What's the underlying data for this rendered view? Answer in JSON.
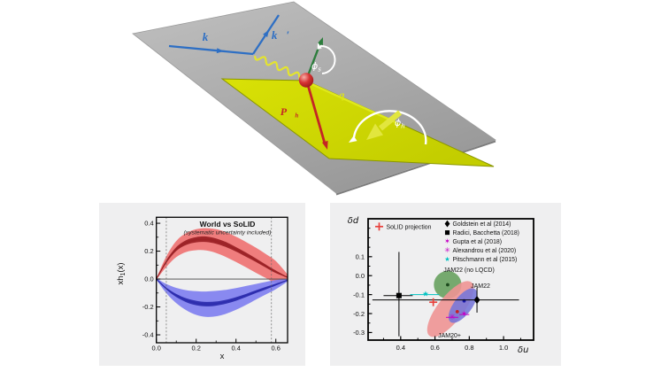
{
  "figure": {
    "bg": "#ffffff",
    "panel_bg": "#efeff0"
  },
  "diagram": {
    "labels": {
      "k": "k⃗",
      "kprime": "k⃗′",
      "q": "q⃗",
      "ph_main": "P⃗",
      "ph_sub": "h",
      "phi_s_main": "ϕ",
      "phi_s_sub": "s",
      "phi_h_main": "ϕ",
      "phi_h_sub": "h"
    },
    "colors": {
      "plane_gray_light": "#bdbdbd",
      "plane_gray_dark": "#9a9a9a",
      "plane_yellow_light": "#d8e006",
      "plane_yellow_dark": "#c2cc00",
      "plane_yellow_edge": "#8a9600",
      "lepton_blue": "#2e6fc4",
      "photon_yellow": "#e4e42e",
      "spin_green": "#2c7d3c",
      "hadron_red": "#c42525",
      "arc_white": "#ffffff",
      "sphere_red": "#cc2626"
    }
  },
  "chart_data": [
    {
      "type": "area",
      "title": "World vs SoLID",
      "subtitle": "(systematic uncertainty included)",
      "xlabel": "x",
      "ylabel_main": "xh",
      "ylabel_sub": "1",
      "ylabel_suffix": "(x)",
      "xlim": [
        0,
        0.659
      ],
      "ylim": [
        -0.457,
        0.443
      ],
      "xticks": {
        "values": [
          0.0,
          0.2,
          0.4,
          0.6
        ],
        "labels": [
          "0.0",
          "0.2",
          "0.4",
          "0.6"
        ],
        "minor": [
          0.1,
          0.3,
          0.5
        ]
      },
      "yticks": {
        "values": [
          0.4,
          0.2,
          0.0,
          -0.2,
          -0.4
        ],
        "labels": [
          "0.4",
          "0.2",
          "0.0",
          "-0.2",
          "-0.4"
        ],
        "minor": [
          0.3,
          0.1,
          -0.1,
          -0.3
        ]
      },
      "dashed_vlines": [
        0.05,
        0.578
      ],
      "zero_line": 0.0,
      "series": [
        {
          "name": "u-quark transversity band",
          "band_color": "#ee7070",
          "line_color": "#9b2226",
          "x": [
            0,
            0.05,
            0.1,
            0.15,
            0.2,
            0.25,
            0.3,
            0.35,
            0.4,
            0.45,
            0.5,
            0.55,
            0.6,
            0.659
          ],
          "center": [
            0,
            0.125,
            0.215,
            0.262,
            0.282,
            0.285,
            0.272,
            0.247,
            0.213,
            0.175,
            0.135,
            0.093,
            0.052,
            0.012
          ],
          "half_outer": [
            0.004,
            0.038,
            0.058,
            0.068,
            0.075,
            0.08,
            0.085,
            0.089,
            0.091,
            0.091,
            0.09,
            0.086,
            0.077,
            0.022
          ],
          "half_inner": [
            0.002,
            0.01,
            0.014,
            0.017,
            0.019,
            0.02,
            0.019,
            0.018,
            0.016,
            0.015,
            0.013,
            0.011,
            0.009,
            0.003
          ]
        },
        {
          "name": "d-quark transversity band",
          "band_color": "#7d7def",
          "line_color": "#2d2dae",
          "x": [
            0,
            0.05,
            0.1,
            0.15,
            0.2,
            0.25,
            0.3,
            0.35,
            0.4,
            0.45,
            0.5,
            0.55,
            0.6,
            0.659
          ],
          "center": [
            0,
            -0.068,
            -0.118,
            -0.152,
            -0.172,
            -0.18,
            -0.176,
            -0.163,
            -0.143,
            -0.118,
            -0.091,
            -0.065,
            -0.04,
            -0.008
          ],
          "half_outer": [
            0.004,
            0.033,
            0.055,
            0.072,
            0.085,
            0.091,
            0.091,
            0.086,
            0.078,
            0.068,
            0.056,
            0.045,
            0.033,
            0.01
          ],
          "half_inner": [
            0.002,
            0.007,
            0.011,
            0.014,
            0.016,
            0.016,
            0.015,
            0.014,
            0.013,
            0.011,
            0.01,
            0.009,
            0.007,
            0.002
          ]
        }
      ]
    },
    {
      "type": "scatter",
      "xlabel": "δu",
      "ylabel": "δd",
      "xlim": [
        0.21,
        1.175
      ],
      "ylim": [
        -0.34,
        0.3
      ],
      "xticks": {
        "values": [
          0.4,
          0.6,
          0.8,
          1.0
        ],
        "labels": [
          "0.4",
          "0.6",
          "0.8",
          "1.0"
        ],
        "minor": [
          0.3,
          0.5,
          0.7,
          0.9,
          1.1
        ]
      },
      "yticks": {
        "values": [
          0.1,
          0.0,
          -0.1,
          -0.2,
          -0.3
        ],
        "labels": [
          "0.1",
          "0.0",
          "-0.1",
          "-0.2",
          "-0.3"
        ],
        "minor": [
          0.25,
          0.2,
          0.15,
          0.05,
          -0.05,
          -0.15,
          -0.25
        ]
      },
      "regions": [
        {
          "name": "JAM22 no-LQCD region",
          "shape": "ellipse",
          "center": [
            0.674,
            -0.048
          ],
          "rx": 0.078,
          "ry": 0.078,
          "rotation": 0,
          "fill": "#5f9c57",
          "opacity": 0.85,
          "label": {
            "text": "JAM22 (no LQCD)"
          },
          "center_dot": {
            "x": 0.674,
            "y": -0.048,
            "color": "#1c4a1c"
          }
        },
        {
          "name": "JAM20+ region",
          "shape": "ellipse",
          "center": [
            0.69,
            -0.176
          ],
          "rx": 0.192,
          "ry": 0.072,
          "rotation": -52,
          "fill": "#ee9494",
          "opacity": 0.9,
          "label": {
            "text": "JAM20+"
          },
          "center_dot": {
            "x": 0.73,
            "y": -0.19,
            "color": "#c42222"
          }
        },
        {
          "name": "JAM22 region",
          "shape": "ellipse",
          "center": [
            0.762,
            -0.158
          ],
          "rx": 0.116,
          "ry": 0.051,
          "rotation": -53,
          "fill": "#7878d8",
          "opacity": 0.9,
          "label": {
            "text": "JAM22"
          },
          "center_dot": {
            "x": 0.77,
            "y": -0.133,
            "color": "#1c1caa"
          }
        }
      ],
      "points": [
        {
          "name": "Goldstein et al (2014)",
          "marker": "diamond",
          "color": "#000000",
          "x": 0.845,
          "y": -0.128,
          "xerr": [
            0.235,
            1.09
          ],
          "yerr": [
            -0.195,
            -0.063
          ]
        },
        {
          "name": "Radici, Bacchetta (2018)",
          "marker": "square",
          "color": "#000000",
          "x": 0.39,
          "y": -0.105,
          "xerr": [
            0.3,
            0.47
          ],
          "yerr": [
            -0.32,
            0.125
          ]
        },
        {
          "name": "Gupta et al (2018)",
          "marker": "star6",
          "color": "#c400c4",
          "x": 0.77,
          "y": -0.205,
          "xerr": [
            0.742,
            0.8
          ]
        },
        {
          "name": "Alexandrou et al (2020)",
          "marker": "asterisk",
          "color": "#c400c4",
          "x": 0.7,
          "y": -0.22,
          "xerr": [
            0.664,
            0.736
          ]
        },
        {
          "name": "Pitschmann et al (2015)",
          "marker": "star5",
          "color": "#00c2c2",
          "x": 0.545,
          "y": -0.1,
          "xerr": [
            0.455,
            0.625
          ]
        }
      ],
      "projection": {
        "label": "SoLID projection",
        "marker": "plus",
        "color": "#e8413c",
        "x": 0.59,
        "y": -0.14
      }
    }
  ]
}
